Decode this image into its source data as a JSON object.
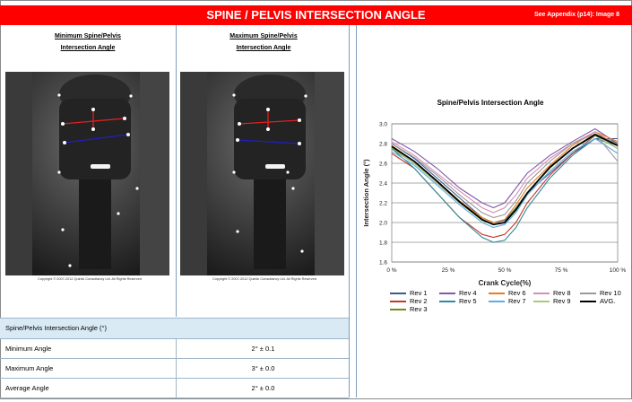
{
  "header": {
    "title": "SPINE / PELVIS INTERSECTION ANGLE",
    "appendix": "See Appendix (p14): Image 8"
  },
  "left": {
    "col1_line1": "Minimum Spine/Pelvis",
    "col1_line2": "Intersection Angle",
    "col2_line1": "Maximum Spine/Pelvis",
    "col2_line2": "Intersection Angle",
    "copyright": "Copyright © 2007-2012 Quintic Consultancy Ltd.  All Rights Reserved"
  },
  "table": {
    "heading": "Spine/Pelvis Intersection Angle (°)",
    "rows": [
      {
        "label": "Minimum Angle",
        "value": "2°  ±  0.1"
      },
      {
        "label": "Maximum Angle",
        "value": "3°  ±  0.0"
      },
      {
        "label": "Average Angle",
        "value": "2°  ±  0.0"
      }
    ]
  },
  "colors": {
    "header": "#ff0000",
    "red_line": "#e02020",
    "blue_line": "#2020c0"
  },
  "chart_data": {
    "type": "line",
    "title": "Spine/Pelvis Intersection Angle",
    "xlabel": "Crank Cycle(%)",
    "ylabel": "Intersection Angle (°)",
    "xlim": [
      0,
      100
    ],
    "ylim": [
      1.6,
      3.0
    ],
    "x_ticks": [
      "0 %",
      "25 %",
      "50 %",
      "75 %",
      "100 %"
    ],
    "y_ticks": [
      "3.0",
      "2.8",
      "2.6",
      "2.4",
      "2.2",
      "2.0",
      "1.8",
      "1.6"
    ],
    "x": [
      0,
      10,
      20,
      30,
      40,
      45,
      50,
      55,
      60,
      70,
      80,
      90,
      100
    ],
    "series": [
      {
        "name": "Rev 1",
        "color": "#3b5998",
        "values": [
          2.8,
          2.65,
          2.45,
          2.25,
          2.05,
          2.0,
          2.02,
          2.15,
          2.3,
          2.5,
          2.7,
          2.85,
          2.85
        ]
      },
      {
        "name": "Rev 2",
        "color": "#c0392b",
        "values": [
          2.7,
          2.55,
          2.3,
          2.05,
          1.88,
          1.85,
          1.88,
          2.0,
          2.2,
          2.48,
          2.7,
          2.88,
          2.75
        ]
      },
      {
        "name": "Rev 3",
        "color": "#6b8e23",
        "values": [
          2.75,
          2.6,
          2.4,
          2.2,
          2.02,
          1.98,
          2.0,
          2.15,
          2.3,
          2.55,
          2.75,
          2.9,
          2.8
        ]
      },
      {
        "name": "Rev 4",
        "color": "#7d5ba6",
        "values": [
          2.85,
          2.72,
          2.55,
          2.35,
          2.2,
          2.15,
          2.2,
          2.35,
          2.5,
          2.68,
          2.82,
          2.95,
          2.8
        ]
      },
      {
        "name": "Rev 5",
        "color": "#2e8b9a",
        "values": [
          2.75,
          2.55,
          2.3,
          2.05,
          1.85,
          1.8,
          1.82,
          1.95,
          2.15,
          2.45,
          2.68,
          2.85,
          2.78
        ]
      },
      {
        "name": "Rev 6",
        "color": "#e67e22",
        "values": [
          2.78,
          2.62,
          2.42,
          2.22,
          2.05,
          2.0,
          2.03,
          2.18,
          2.35,
          2.58,
          2.78,
          2.92,
          2.82
        ]
      },
      {
        "name": "Rev 7",
        "color": "#5dade2",
        "values": [
          2.72,
          2.58,
          2.38,
          2.18,
          2.0,
          1.95,
          1.98,
          2.1,
          2.28,
          2.52,
          2.72,
          2.85,
          2.7
        ]
      },
      {
        "name": "Rev 8",
        "color": "#d98cb3",
        "values": [
          2.82,
          2.68,
          2.5,
          2.32,
          2.15,
          2.1,
          2.15,
          2.28,
          2.45,
          2.65,
          2.8,
          2.92,
          2.78
        ]
      },
      {
        "name": "Rev 9",
        "color": "#a9c77e",
        "values": [
          2.76,
          2.6,
          2.4,
          2.2,
          2.02,
          1.98,
          2.0,
          2.12,
          2.3,
          2.55,
          2.75,
          2.88,
          2.75
        ]
      },
      {
        "name": "Rev 10",
        "color": "#9a9a9a",
        "values": [
          2.8,
          2.66,
          2.48,
          2.28,
          2.1,
          2.05,
          2.08,
          2.22,
          2.4,
          2.62,
          2.8,
          2.9,
          2.62
        ]
      },
      {
        "name": "AVG.",
        "color": "#000000",
        "values": [
          2.77,
          2.62,
          2.42,
          2.21,
          2.03,
          1.98,
          2.0,
          2.13,
          2.3,
          2.56,
          2.75,
          2.89,
          2.78
        ]
      }
    ],
    "legend": "bottom",
    "grid": true
  }
}
